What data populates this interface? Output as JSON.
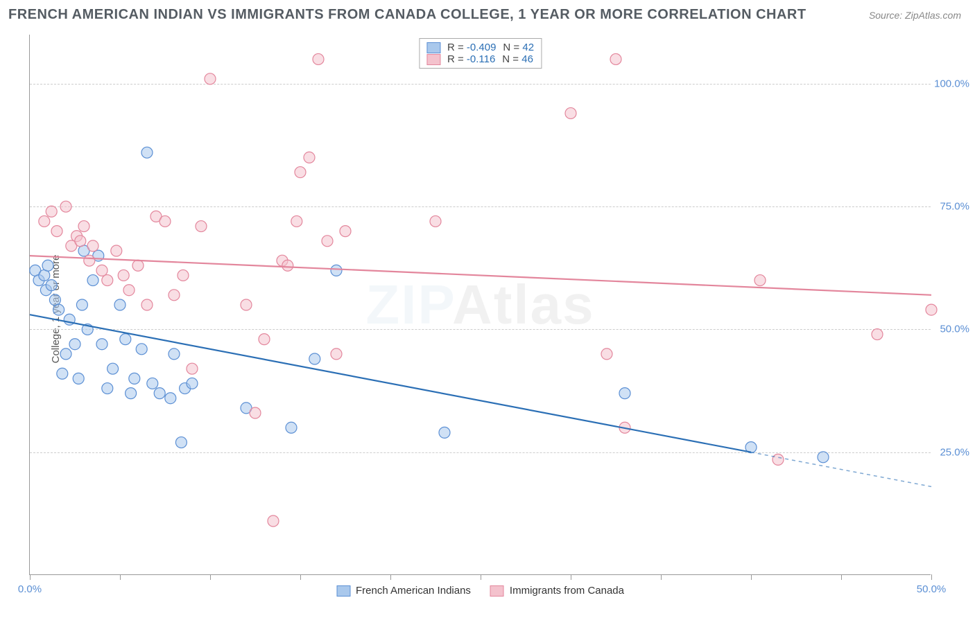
{
  "title": "FRENCH AMERICAN INDIAN VS IMMIGRANTS FROM CANADA COLLEGE, 1 YEAR OR MORE CORRELATION CHART",
  "source": "Source: ZipAtlas.com",
  "ylabel": "College, 1 year or more",
  "watermark_a": "ZIP",
  "watermark_b": "Atlas",
  "chart": {
    "type": "scatter",
    "xlim": [
      0,
      50
    ],
    "ylim": [
      0,
      110
    ],
    "yticks": [
      25,
      50,
      75,
      100
    ],
    "ytick_labels": [
      "25.0%",
      "50.0%",
      "75.0%",
      "100.0%"
    ],
    "xticks": [
      0,
      5,
      10,
      15,
      20,
      25,
      30,
      35,
      40,
      45,
      50
    ],
    "xtick_labels": {
      "0": "0.0%",
      "50": "50.0%"
    },
    "background_color": "#ffffff",
    "grid_color": "#d4d4d4",
    "axis_color": "#999999",
    "point_radius": 8,
    "point_opacity": 0.55,
    "line_width": 2.2
  },
  "series": [
    {
      "name": "French American Indians",
      "fill": "#a9c8ec",
      "stroke": "#5b8fd4",
      "line_color": "#2b6fb5",
      "R": "-0.409",
      "N": "42",
      "trend": {
        "x1": 0,
        "y1": 53,
        "x2": 40,
        "y2": 25,
        "dash_x2": 50,
        "dash_y2": 18
      },
      "points": [
        [
          0.3,
          62
        ],
        [
          0.5,
          60
        ],
        [
          0.8,
          61
        ],
        [
          0.9,
          58
        ],
        [
          1.0,
          63
        ],
        [
          1.2,
          59
        ],
        [
          1.4,
          56
        ],
        [
          1.6,
          54
        ],
        [
          1.8,
          41
        ],
        [
          2.0,
          45
        ],
        [
          2.2,
          52
        ],
        [
          2.5,
          47
        ],
        [
          2.7,
          40
        ],
        [
          2.9,
          55
        ],
        [
          3.0,
          66
        ],
        [
          3.2,
          50
        ],
        [
          3.5,
          60
        ],
        [
          3.8,
          65
        ],
        [
          4.0,
          47
        ],
        [
          4.3,
          38
        ],
        [
          4.6,
          42
        ],
        [
          5.0,
          55
        ],
        [
          5.3,
          48
        ],
        [
          5.6,
          37
        ],
        [
          5.8,
          40
        ],
        [
          6.2,
          46
        ],
        [
          6.5,
          86
        ],
        [
          6.8,
          39
        ],
        [
          7.2,
          37
        ],
        [
          7.8,
          36
        ],
        [
          8.0,
          45
        ],
        [
          8.4,
          27
        ],
        [
          8.6,
          38
        ],
        [
          9.0,
          39
        ],
        [
          12.0,
          34
        ],
        [
          14.5,
          30
        ],
        [
          15.8,
          44
        ],
        [
          17.0,
          62
        ],
        [
          23.0,
          29
        ],
        [
          33.0,
          37
        ],
        [
          40.0,
          26
        ],
        [
          44.0,
          24
        ]
      ]
    },
    {
      "name": "Immigrants from Canada",
      "fill": "#f4c2cd",
      "stroke": "#e3869c",
      "line_color": "#e3869c",
      "R": "-0.116",
      "N": "46",
      "trend": {
        "x1": 0,
        "y1": 65,
        "x2": 50,
        "y2": 57
      },
      "points": [
        [
          0.8,
          72
        ],
        [
          1.2,
          74
        ],
        [
          1.5,
          70
        ],
        [
          2.0,
          75
        ],
        [
          2.3,
          67
        ],
        [
          2.6,
          69
        ],
        [
          2.8,
          68
        ],
        [
          3.0,
          71
        ],
        [
          3.3,
          64
        ],
        [
          3.5,
          67
        ],
        [
          4.0,
          62
        ],
        [
          4.3,
          60
        ],
        [
          4.8,
          66
        ],
        [
          5.2,
          61
        ],
        [
          5.5,
          58
        ],
        [
          6.0,
          63
        ],
        [
          6.5,
          55
        ],
        [
          7.0,
          73
        ],
        [
          7.5,
          72
        ],
        [
          8.0,
          57
        ],
        [
          8.5,
          61
        ],
        [
          9.0,
          42
        ],
        [
          9.5,
          71
        ],
        [
          10.0,
          101
        ],
        [
          12.0,
          55
        ],
        [
          12.5,
          33
        ],
        [
          13.0,
          48
        ],
        [
          13.5,
          11
        ],
        [
          14.0,
          64
        ],
        [
          14.3,
          63
        ],
        [
          14.8,
          72
        ],
        [
          15.0,
          82
        ],
        [
          15.5,
          85
        ],
        [
          16.0,
          105
        ],
        [
          16.5,
          68
        ],
        [
          17.0,
          45
        ],
        [
          17.5,
          70
        ],
        [
          22.5,
          72
        ],
        [
          30.0,
          94
        ],
        [
          32.0,
          45
        ],
        [
          32.5,
          105
        ],
        [
          33.0,
          30
        ],
        [
          40.5,
          60
        ],
        [
          41.5,
          23.5
        ],
        [
          47.0,
          49
        ],
        [
          50.0,
          54
        ]
      ]
    }
  ],
  "legend_top": {
    "R_label": "R =",
    "N_label": "N ="
  }
}
